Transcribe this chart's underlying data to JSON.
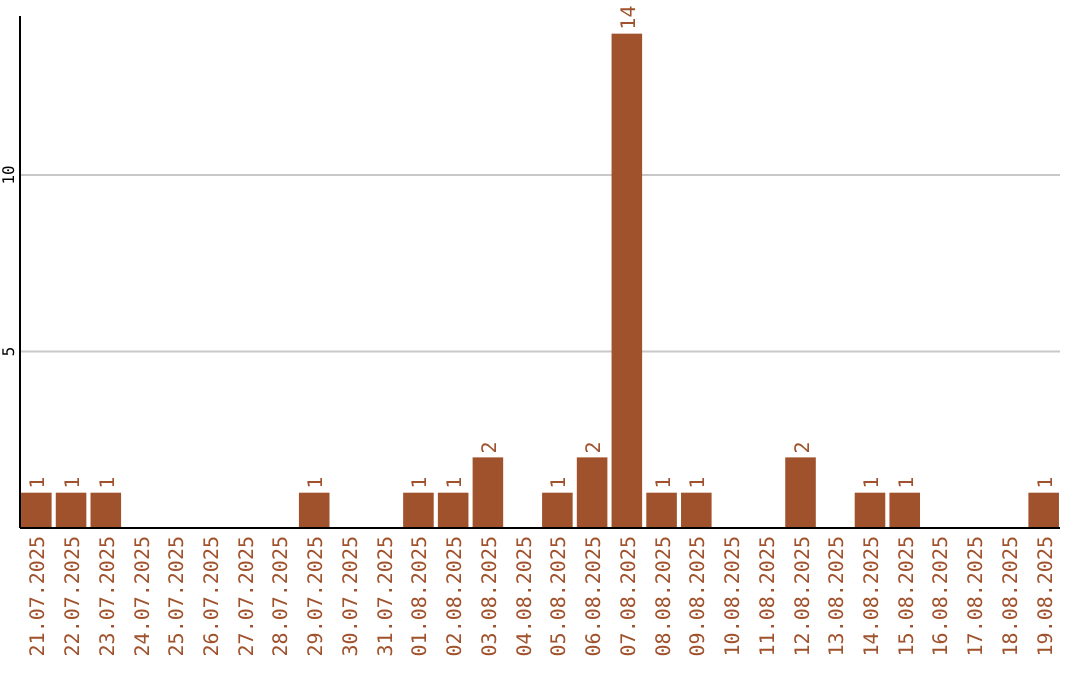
{
  "chart_data": {
    "type": "bar",
    "categories": [
      "21.07.2025",
      "22.07.2025",
      "23.07.2025",
      "24.07.2025",
      "25.07.2025",
      "26.07.2025",
      "27.07.2025",
      "28.07.2025",
      "29.07.2025",
      "30.07.2025",
      "31.07.2025",
      "01.08.2025",
      "02.08.2025",
      "03.08.2025",
      "04.08.2025",
      "05.08.2025",
      "06.08.2025",
      "07.08.2025",
      "08.08.2025",
      "09.08.2025",
      "10.08.2025",
      "11.08.2025",
      "12.08.2025",
      "13.08.2025",
      "14.08.2025",
      "15.08.2025",
      "16.08.2025",
      "17.08.2025",
      "18.08.2025",
      "19.08.2025"
    ],
    "values": [
      1,
      1,
      1,
      0,
      0,
      0,
      0,
      0,
      1,
      0,
      0,
      1,
      1,
      2,
      0,
      1,
      2,
      14,
      1,
      1,
      0,
      0,
      2,
      0,
      1,
      1,
      0,
      0,
      0,
      1
    ],
    "value_labels": [
      "1",
      "1",
      "1",
      null,
      null,
      null,
      null,
      null,
      "1",
      null,
      null,
      "1",
      "1",
      "2",
      null,
      "1",
      "2",
      "14",
      "1",
      "1",
      null,
      null,
      "2",
      null,
      "1",
      "1",
      null,
      null,
      null,
      "1"
    ],
    "color": "#a0522d",
    "ylim": [
      0,
      14.5
    ],
    "yticks": [
      5,
      10
    ],
    "grid": "y"
  }
}
